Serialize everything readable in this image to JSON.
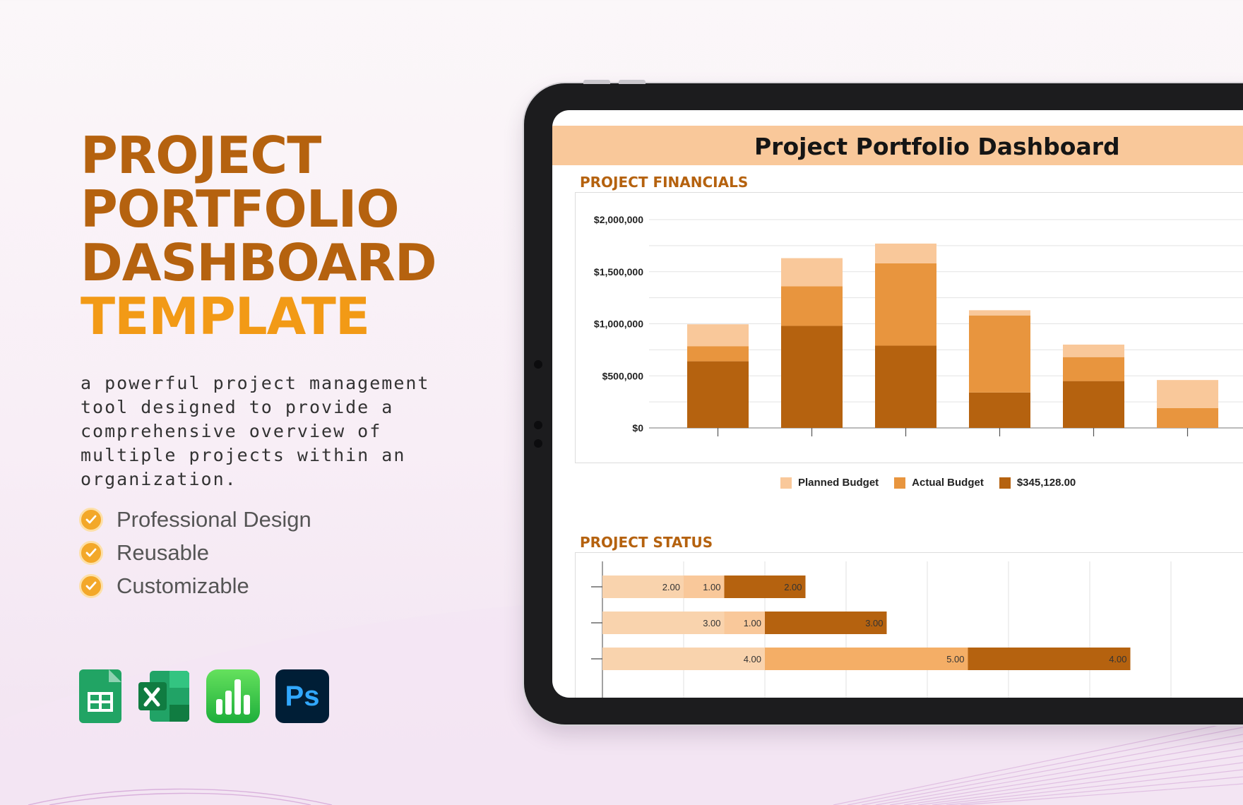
{
  "hero": {
    "title_lines": [
      "PROJECT",
      "PORTFOLIO",
      "DASHBOARD"
    ],
    "title_accent": "TEMPLATE",
    "description": "a powerful project management tool designed to provide a comprehensive overview of multiple projects within an organization."
  },
  "features": [
    {
      "label": "Professional Design",
      "icon": "check-circle-icon"
    },
    {
      "label": "Reusable",
      "icon": "check-circle-icon"
    },
    {
      "label": "Customizable",
      "icon": "check-circle-icon"
    }
  ],
  "apps": [
    "google-sheets-icon",
    "excel-icon",
    "numbers-icon",
    "photoshop-icon"
  ],
  "apps_text": {
    "photoshop": "Ps"
  },
  "dashboard": {
    "title": "Project Portfolio Dashboard",
    "financials_title": "PROJECT FINANCIALS",
    "status_title": "PROJECT STATUS"
  },
  "colors": {
    "dark_orange": "#b5620f",
    "mid_orange": "#e8953e",
    "light_orange": "#f9c89a",
    "accent_yellow": "#f29a16",
    "header_bg": "#f9c89a"
  },
  "chart_data": [
    {
      "type": "bar",
      "stacked": true,
      "ylim": [
        0,
        2000000
      ],
      "yticks": [
        "$0",
        "$500,000",
        "$1,000,000",
        "$1,500,000",
        "$2,000,000"
      ],
      "ytick_values": [
        0,
        500000,
        1000000,
        1500000,
        2000000
      ],
      "categories": [
        "",
        "",
        "",
        "",
        "",
        ""
      ],
      "series": [
        {
          "name": "$345,128.00",
          "color": "#b5620f",
          "values": [
            640000,
            980000,
            790000,
            340000,
            450000,
            0
          ]
        },
        {
          "name": "Actual Budget",
          "color": "#e8953e",
          "values": [
            145000,
            380000,
            790000,
            740000,
            230000,
            190000
          ]
        },
        {
          "name": "Planned Budget",
          "color": "#f9c89a",
          "values": [
            210000,
            270000,
            190000,
            50000,
            120000,
            270000
          ]
        }
      ],
      "legend_order": [
        "Planned Budget",
        "Actual Budget",
        "$345,128.00"
      ],
      "grid": true,
      "legend_position": "bottom"
    },
    {
      "type": "bar",
      "orientation": "horizontal",
      "stacked": true,
      "xlim": [
        0,
        14
      ],
      "rows": [
        {
          "segments": [
            {
              "value": 2.0,
              "label": "2.00",
              "color": "#f9d3ad"
            },
            {
              "value": 1.0,
              "label": "1.00",
              "color": "#f9c89a"
            },
            {
              "value": 2.0,
              "label": "2.00",
              "color": "#b5620f"
            }
          ]
        },
        {
          "segments": [
            {
              "value": 3.0,
              "label": "3.00",
              "color": "#f9d3ad"
            },
            {
              "value": 1.0,
              "label": "1.00",
              "color": "#f9c89a"
            },
            {
              "value": 3.0,
              "label": "3.00",
              "color": "#b5620f"
            }
          ]
        },
        {
          "segments": [
            {
              "value": 4.0,
              "label": "4.00",
              "color": "#f9d3ad"
            },
            {
              "value": 5.0,
              "label": "5.00",
              "color": "#f4ae66"
            },
            {
              "value": 4.0,
              "label": "4.00",
              "color": "#b5620f"
            }
          ]
        }
      ]
    }
  ]
}
